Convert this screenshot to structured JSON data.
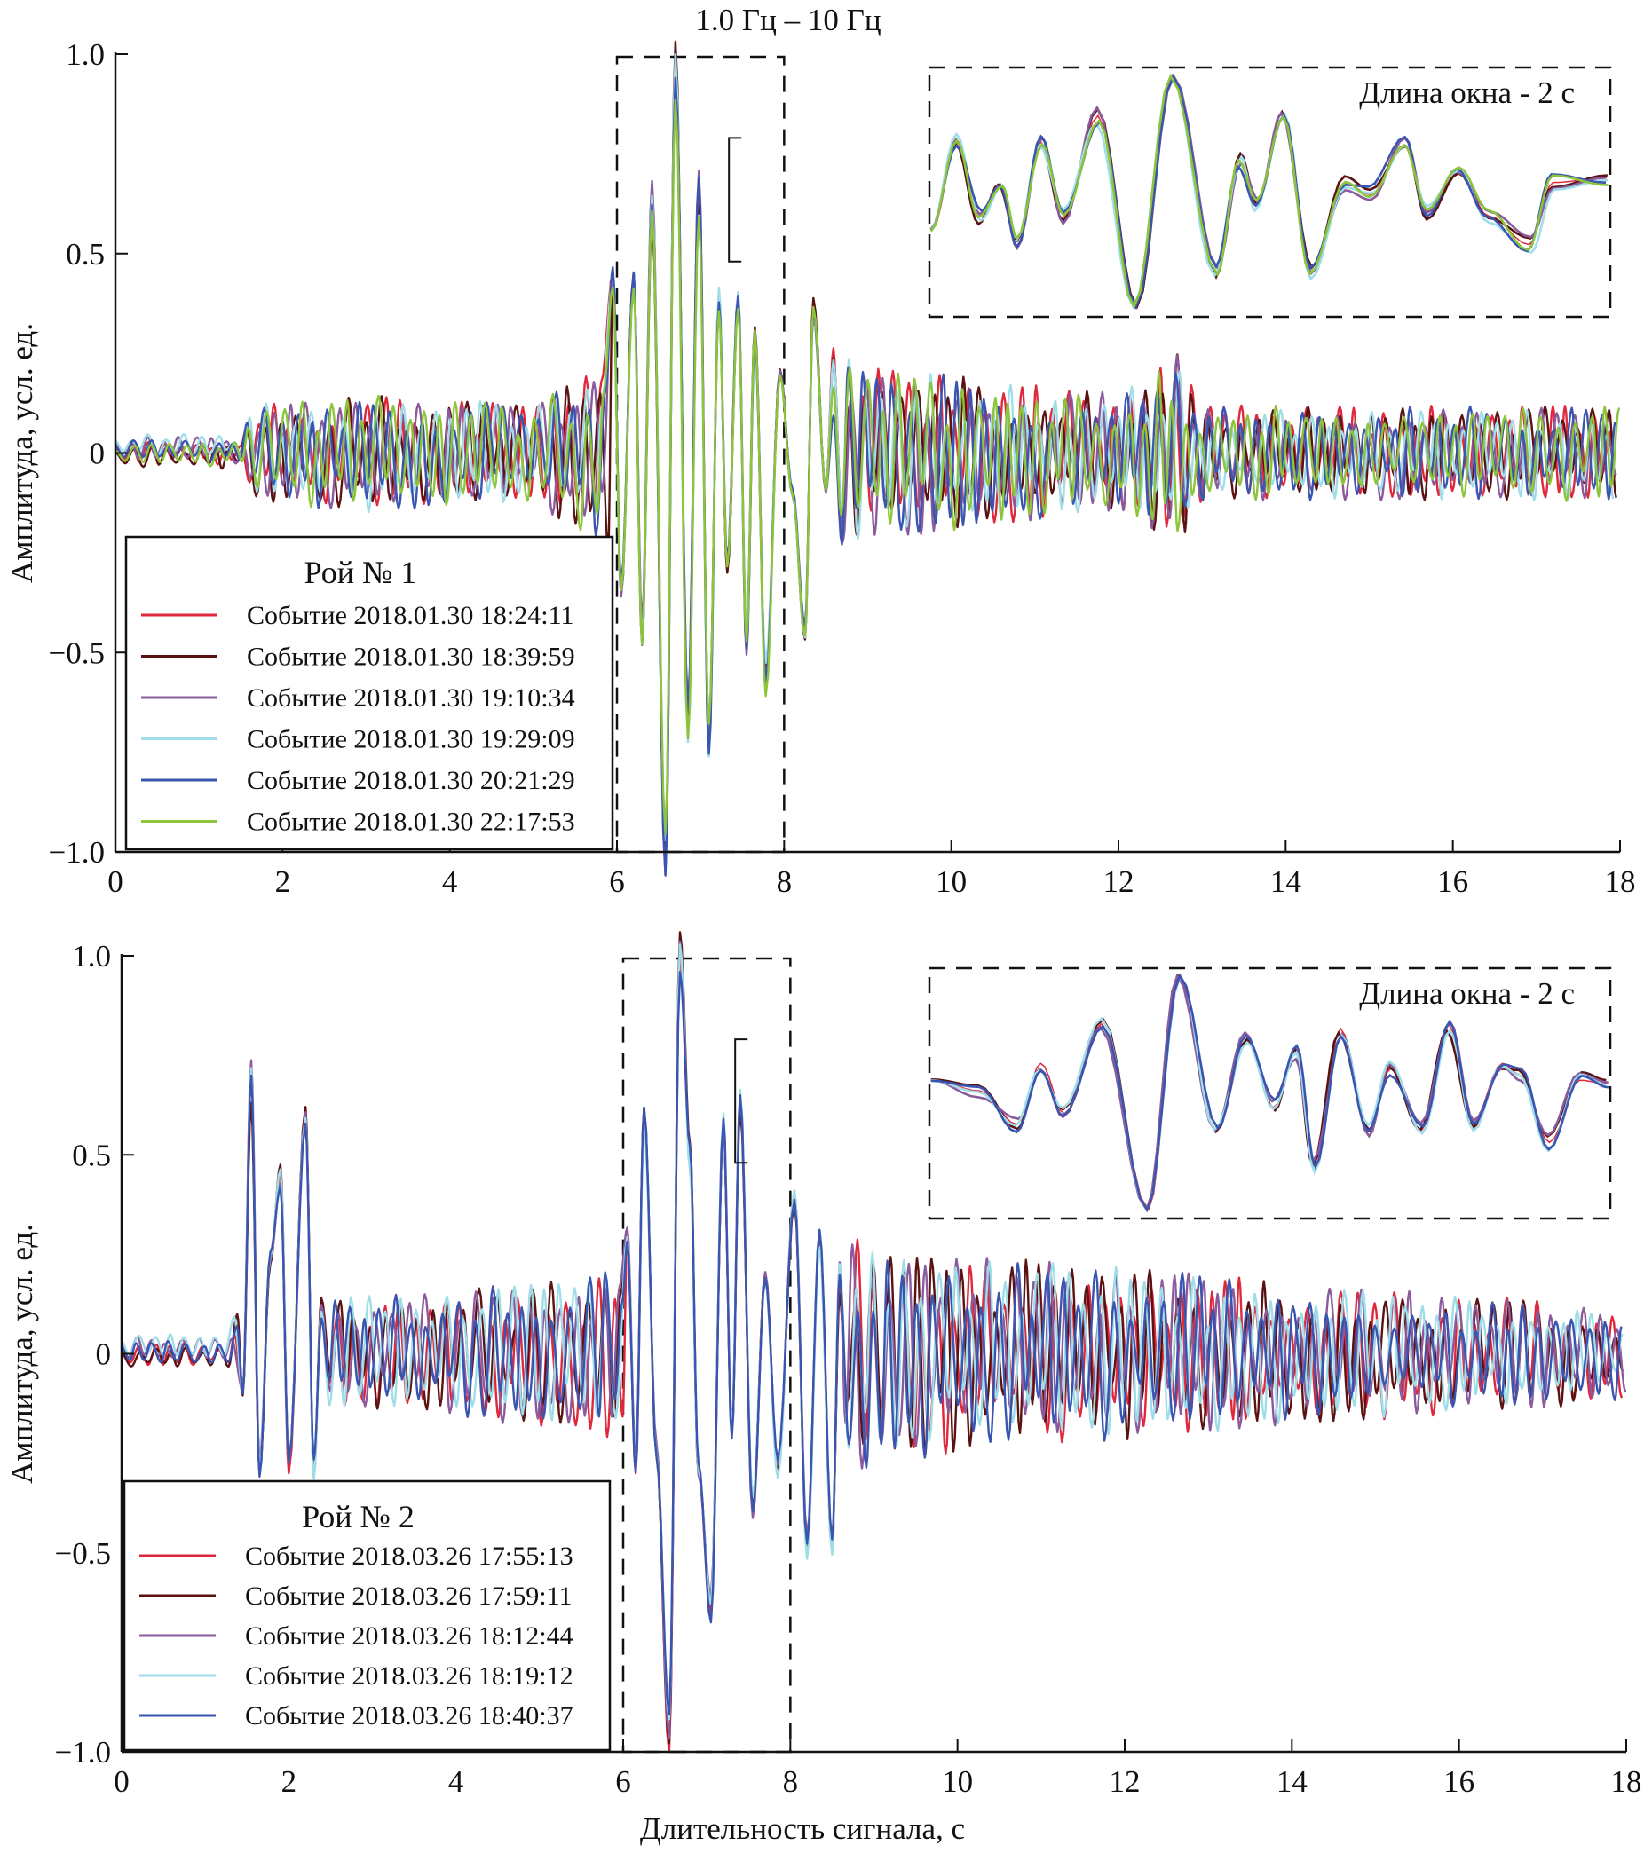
{
  "chart_data": [
    {
      "type": "line",
      "title": "1.0 Гц – 10 Гц",
      "xlabel": "",
      "ylabel": "Амплитуда, усл. ед.",
      "xlim": [
        0,
        18
      ],
      "ylim": [
        -1.0,
        1.0
      ],
      "xticks": [
        "0",
        "2",
        "4",
        "6",
        "8",
        "10",
        "12",
        "14",
        "16",
        "18"
      ],
      "yticks": [
        "1.0",
        "0.5",
        "0",
        "−0.5",
        "−1.0"
      ],
      "grid": false,
      "legend_title": "Рой № 1",
      "legend_placement": "bottom-left",
      "highlight_window": [
        6,
        8
      ],
      "inset_label": "Длина окна - 2 с",
      "series": [
        {
          "name": "Событие 2018.01.30 18:24:11",
          "color": "#e0283c"
        },
        {
          "name": "Событие 2018.01.30 18:39:59",
          "color": "#5a1212"
        },
        {
          "name": "Событие 2018.01.30 19:10:34",
          "color": "#8a5a9c"
        },
        {
          "name": "Событие 2018.01.30 19:29:09",
          "color": "#9fdde8"
        },
        {
          "name": "Событие 2018.01.30 20:21:29",
          "color": "#3a55b0"
        },
        {
          "name": "Событие 2018.01.30 22:17:53",
          "color": "#8cc43c"
        }
      ],
      "envelope": [
        [
          0,
          0.03
        ],
        [
          1.55,
          0.03
        ],
        [
          1.6,
          0.12
        ],
        [
          3,
          0.15
        ],
        [
          5,
          0.12
        ],
        [
          5.5,
          0.2
        ],
        [
          5.9,
          0.25
        ],
        [
          8.3,
          0.3
        ],
        [
          9,
          0.22
        ],
        [
          12,
          0.15
        ],
        [
          12.7,
          0.25
        ],
        [
          13,
          0.12
        ],
        [
          18,
          0.12
        ]
      ],
      "peaks": [
        [
          [
            5.95,
            0.45
          ],
          [
            6.05,
            -0.35
          ],
          [
            6.2,
            0.45
          ],
          [
            6.3,
            -0.47
          ],
          [
            6.42,
            0.65
          ],
          [
            6.58,
            -1.0
          ],
          [
            6.7,
            1.0
          ],
          [
            6.85,
            -0.7
          ],
          [
            6.98,
            0.67
          ],
          [
            7.1,
            -0.72
          ],
          [
            7.22,
            0.4
          ],
          [
            7.32,
            -0.3
          ],
          [
            7.45,
            0.4
          ],
          [
            7.55,
            -0.48
          ],
          [
            7.65,
            0.3
          ],
          [
            7.78,
            -0.58
          ],
          [
            7.95,
            0.2
          ],
          [
            8.1,
            -0.1
          ],
          [
            8.25,
            -0.45
          ],
          [
            8.35,
            0.38
          ],
          [
            8.5,
            -0.1
          ]
        ]
      ],
      "inset_wave": [
        [
          0,
          -0.3
        ],
        [
          0.07,
          0.42
        ],
        [
          0.14,
          -0.2
        ],
        [
          0.2,
          0.07
        ],
        [
          0.25,
          -0.45
        ],
        [
          0.32,
          0.42
        ],
        [
          0.39,
          -0.2
        ],
        [
          0.49,
          0.64
        ],
        [
          0.6,
          -0.96
        ],
        [
          0.71,
          0.97
        ],
        [
          0.84,
          -0.68
        ],
        [
          0.91,
          0.26
        ],
        [
          0.96,
          -0.11
        ],
        [
          1.04,
          0.64
        ],
        [
          1.12,
          -0.68
        ],
        [
          1.22,
          0.08
        ],
        [
          1.3,
          -0.02
        ],
        [
          1.4,
          0.45
        ],
        [
          1.47,
          -0.16
        ],
        [
          1.56,
          0.17
        ],
        [
          1.65,
          -0.2
        ],
        [
          1.77,
          -0.44
        ],
        [
          1.84,
          0.08
        ],
        [
          2.0,
          0.12
        ]
      ]
    },
    {
      "type": "line",
      "xlabel": "Длительность сигнала, с",
      "ylabel": "Амплитуда, усл. ед.",
      "xlim": [
        0,
        18
      ],
      "ylim": [
        -1.0,
        1.0
      ],
      "xticks": [
        "0",
        "2",
        "4",
        "6",
        "8",
        "10",
        "12",
        "14",
        "16",
        "18"
      ],
      "yticks": [
        "1.0",
        "0.5",
        "0",
        "−0.5",
        "−1.0"
      ],
      "grid": false,
      "legend_title": "Рой № 2",
      "legend_placement": "bottom-left",
      "highlight_window": [
        6,
        8
      ],
      "inset_label": "Длина окна - 2 с",
      "series": [
        {
          "name": "Событие 2018.03.26 17:55:13",
          "color": "#e0283c"
        },
        {
          "name": "Событие 2018.03.26 17:59:11",
          "color": "#5a1212"
        },
        {
          "name": "Событие 2018.03.26 18:12:44",
          "color": "#8a5a9c"
        },
        {
          "name": "Событие 2018.03.26 18:19:12",
          "color": "#9fdde8"
        },
        {
          "name": "Событие 2018.03.26 18:40:37",
          "color": "#3a55b0"
        }
      ],
      "envelope": [
        [
          0,
          0.03
        ],
        [
          1.3,
          0.03
        ],
        [
          1.4,
          0.15
        ],
        [
          3.5,
          0.15
        ],
        [
          5.5,
          0.2
        ],
        [
          8.5,
          0.3
        ],
        [
          10,
          0.25
        ],
        [
          13,
          0.2
        ],
        [
          18,
          0.12
        ]
      ],
      "peaks": [
        [
          [
            1.45,
            -0.1
          ],
          [
            1.55,
            0.7
          ],
          [
            1.65,
            -0.3
          ],
          [
            1.78,
            0.25
          ],
          [
            1.9,
            0.45
          ],
          [
            2.0,
            -0.3
          ],
          [
            2.2,
            0.62
          ],
          [
            2.3,
            -0.3
          ]
        ],
        [
          [
            6.05,
            0.3
          ],
          [
            6.15,
            -0.3
          ],
          [
            6.25,
            0.6
          ],
          [
            6.4,
            -0.25
          ],
          [
            6.55,
            -1.0
          ],
          [
            6.68,
            1.0
          ],
          [
            6.8,
            0.5
          ],
          [
            6.9,
            -0.3
          ],
          [
            7.05,
            -0.65
          ],
          [
            7.2,
            0.58
          ],
          [
            7.3,
            -0.2
          ],
          [
            7.4,
            0.65
          ],
          [
            7.55,
            -0.4
          ],
          [
            7.7,
            0.2
          ],
          [
            7.85,
            -0.3
          ],
          [
            8.05,
            0.4
          ],
          [
            8.2,
            -0.5
          ],
          [
            8.35,
            0.3
          ],
          [
            8.5,
            -0.5
          ]
        ]
      ],
      "inset_wave": [
        [
          0,
          0.11
        ],
        [
          0.14,
          0.02
        ],
        [
          0.25,
          -0.26
        ],
        [
          0.32,
          0.25
        ],
        [
          0.39,
          -0.17
        ],
        [
          0.5,
          0.58
        ],
        [
          0.64,
          -0.97
        ],
        [
          0.73,
          0.98
        ],
        [
          0.84,
          -0.31
        ],
        [
          0.93,
          0.45
        ],
        [
          1.01,
          -0.12
        ],
        [
          1.08,
          0.35
        ],
        [
          1.13,
          -0.6
        ],
        [
          1.21,
          0.54
        ],
        [
          1.29,
          -0.31
        ],
        [
          1.36,
          0.21
        ],
        [
          1.45,
          -0.31
        ],
        [
          1.53,
          0.58
        ],
        [
          1.6,
          -0.26
        ],
        [
          1.69,
          0.25
        ],
        [
          1.74,
          0.16
        ],
        [
          1.83,
          -0.41
        ],
        [
          1.92,
          0.11
        ],
        [
          2.0,
          0.08
        ]
      ]
    }
  ]
}
